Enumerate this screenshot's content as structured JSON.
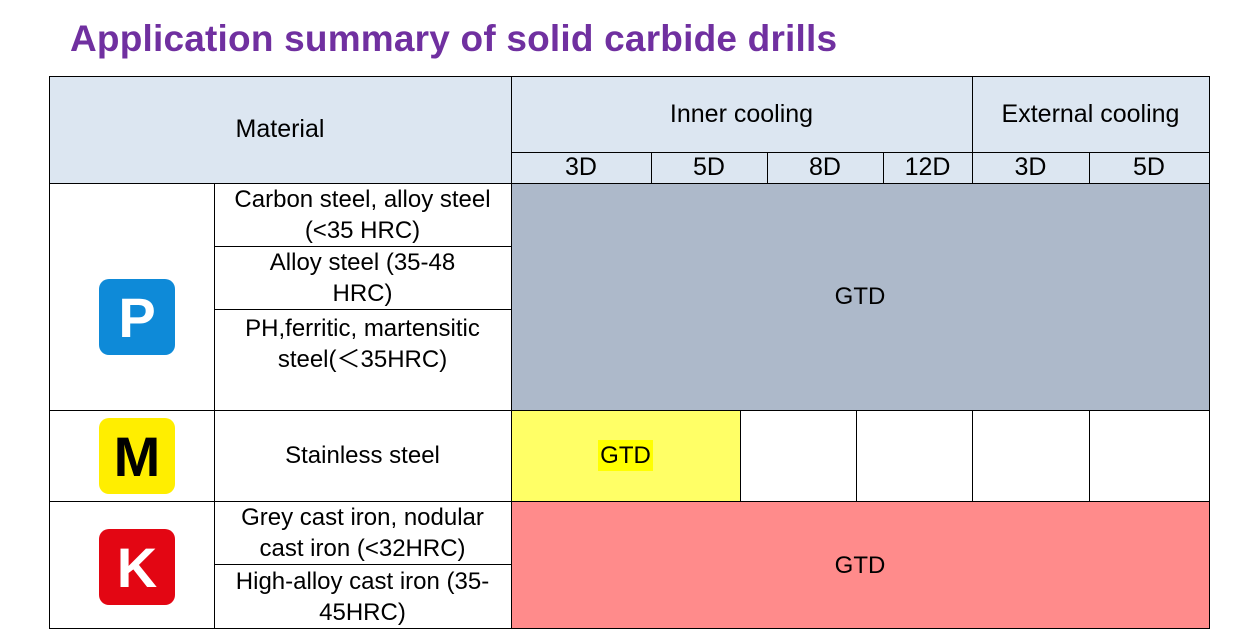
{
  "title": "Application summary of solid carbide drills",
  "header": {
    "material": "Material",
    "inner_cooling": "Inner cooling",
    "external_cooling": "External cooling",
    "inner_depths": [
      "3D",
      "5D",
      "8D",
      "12D"
    ],
    "external_depths": [
      "3D",
      "5D"
    ]
  },
  "groups": [
    {
      "badge": "P",
      "badge_color": "#0e8ad8",
      "badge_text_color": "#ffffff",
      "fill_color": "#adb9ca",
      "materials": [
        "Carbon steel, alloy steel (<35 HRC)",
        "Alloy steel (35-48 HRC)",
        "PH,ferritic, martensitic steel(＜35HRC)"
      ],
      "value": "GTD"
    },
    {
      "badge": "M",
      "badge_color": "#ffee00",
      "badge_text_color": "#000000",
      "fill_color": "#ffff66",
      "materials": [
        "Stainless steel"
      ],
      "value": "GTD"
    },
    {
      "badge": "K",
      "badge_color": "#e30613",
      "badge_text_color": "#ffffff",
      "fill_color": "#ff8b8b",
      "materials": [
        "Grey cast iron, nodular cast iron (<32HRC)",
        "High-alloy cast iron (35-45HRC)"
      ],
      "value": "GTD"
    }
  ]
}
